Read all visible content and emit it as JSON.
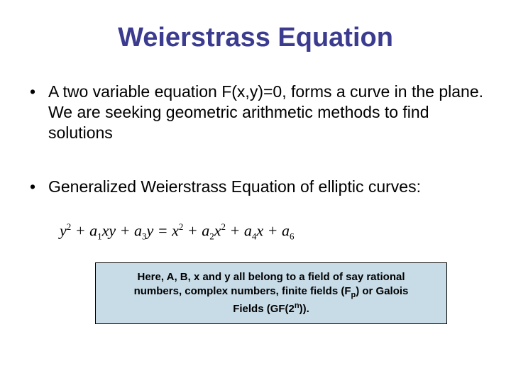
{
  "title": "Weierstrass Equation",
  "bullets": {
    "b1": "A two variable equation F(x,y)=0, forms a curve in the plane. We are seeking geometric arithmetic methods to find solutions",
    "b2": "Generalized Weierstrass Equation of elliptic curves:"
  },
  "equation": {
    "text": "y² + a₁xy + a₃y = x² + a₂x² + a₄x + a₆",
    "terms": {
      "lhs_y2": "y",
      "lhs_y2_exp": "2",
      "a1": "a",
      "a1_sub": "1",
      "xy": "xy",
      "a3": "a",
      "a3_sub": "3",
      "y": "y",
      "rhs_x2a": "x",
      "rhs_x2a_exp": "2",
      "a2": "a",
      "a2_sub": "2",
      "rhs_x2b": "x",
      "rhs_x2b_exp": "2",
      "a4": "a",
      "a4_sub": "4",
      "x": "x",
      "a6": "a",
      "a6_sub": "6"
    }
  },
  "note": {
    "line_pre": "Here, A, B, x and y all belong to a field of say rational numbers, complex numbers, finite fields (F",
    "fp_sub": "p",
    "line_mid": ") or Galois Fields (GF(2",
    "gf_sup": "n",
    "line_post": "))."
  },
  "colors": {
    "title": "#3b3b8f",
    "text": "#000000",
    "note_bg": "#c8dce8",
    "note_border": "#000000",
    "background": "#ffffff"
  },
  "fonts": {
    "title_size": 38,
    "bullet_size": 23,
    "equation_size": 22,
    "note_size": 15
  }
}
